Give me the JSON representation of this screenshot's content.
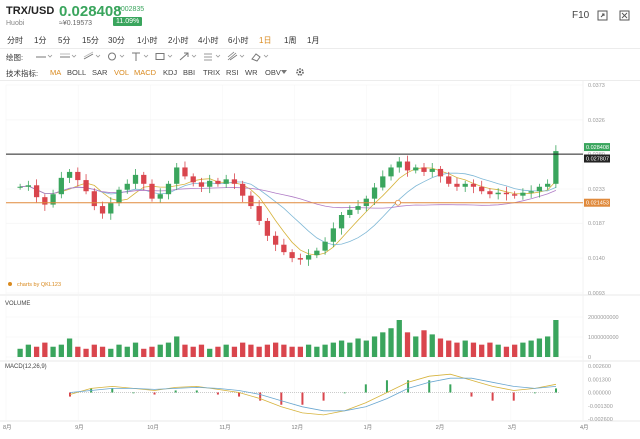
{
  "header": {
    "pair": "TRX/USD",
    "exchange": "Huobi",
    "price": "0.028408",
    "cny_price": "≈¥0.19573",
    "change": "0.002835",
    "change_pct": "11.09%",
    "f10": "F10"
  },
  "periods": [
    {
      "label": "分时",
      "active": false
    },
    {
      "label": "1分",
      "active": false
    },
    {
      "label": "5分",
      "active": false
    },
    {
      "label": "15分",
      "active": false
    },
    {
      "label": "30分",
      "active": false
    },
    {
      "label": "1小时",
      "active": false
    },
    {
      "label": "2小时",
      "active": false
    },
    {
      "label": "4小时",
      "active": false
    },
    {
      "label": "6小时",
      "active": false
    },
    {
      "label": "1日",
      "active": true
    },
    {
      "label": "1周",
      "active": false
    },
    {
      "label": "1月",
      "active": false
    }
  ],
  "draw": {
    "label": "绘图:",
    "tools": [
      "line-tool-icon",
      "horizontal-line-icon",
      "channel-icon",
      "circle-icon",
      "text-icon",
      "rect-icon",
      "arrow-icon",
      "fib-icon",
      "pitchfork-icon",
      "eraser-icon"
    ]
  },
  "indicators": {
    "label": "技术指标:",
    "items": [
      {
        "label": "MA",
        "active": true
      },
      {
        "label": "BOLL",
        "active": false
      },
      {
        "label": "SAR",
        "active": false
      },
      {
        "label": "VOL",
        "active": true
      },
      {
        "label": "MACD",
        "active": true
      },
      {
        "label": "KDJ",
        "active": false
      },
      {
        "label": "BBI",
        "active": false
      },
      {
        "label": "TRIX",
        "active": false
      },
      {
        "label": "RSI",
        "active": false
      },
      {
        "label": "WR",
        "active": false
      },
      {
        "label": "OBV",
        "active": false
      }
    ]
  },
  "watermark": "charts by QKL123",
  "colors": {
    "up": "#3aa55d",
    "down": "#d9454d",
    "accent": "#d98a1f",
    "hline_orange": "#e08a3c",
    "hline_black": "#222222"
  },
  "chart_data": [
    {
      "type": "candlestick",
      "title": "",
      "y_ticks": [
        "0.0373",
        "0.0326",
        "0.0280",
        "0.0233",
        "0.0187",
        "0.0140",
        "0.0093"
      ],
      "ylim": [
        0.0093,
        0.0373
      ],
      "x_labels": [
        "8月",
        "9月",
        "10月",
        "11月",
        "12月",
        "1月",
        "2月",
        "3月",
        "4月"
      ],
      "markers": [
        {
          "label": "0.028408",
          "value": 0.028408,
          "color": "#3aa55d"
        },
        {
          "label": "0.027807",
          "value": 0.027807,
          "color": "#222222"
        },
        {
          "label": "0.021453",
          "value": 0.021453,
          "color": "#e08a3c"
        }
      ],
      "horizontal_lines": [
        {
          "value": 0.028,
          "color": "#222222"
        },
        {
          "value": 0.021453,
          "color": "#e08a3c"
        }
      ],
      "close_series": [
        0.0236,
        0.0238,
        0.0222,
        0.0212,
        0.0226,
        0.0248,
        0.0256,
        0.0245,
        0.023,
        0.021,
        0.02,
        0.0214,
        0.0232,
        0.024,
        0.0252,
        0.024,
        0.022,
        0.0226,
        0.024,
        0.0262,
        0.025,
        0.0242,
        0.0236,
        0.0244,
        0.024,
        0.0246,
        0.024,
        0.0224,
        0.021,
        0.019,
        0.017,
        0.0158,
        0.0148,
        0.014,
        0.0138,
        0.0144,
        0.015,
        0.0162,
        0.018,
        0.0198,
        0.0205,
        0.021,
        0.022,
        0.0235,
        0.025,
        0.0262,
        0.027,
        0.0258,
        0.0262,
        0.0256,
        0.026,
        0.025,
        0.024,
        0.0236,
        0.024,
        0.0236,
        0.023,
        0.0226,
        0.0228,
        0.0226,
        0.0224,
        0.0228,
        0.023,
        0.0236,
        0.024,
        0.0284
      ]
    },
    {
      "type": "bar",
      "title": "VOLUME",
      "y_ticks": [
        "2000000000",
        "1000000000",
        "0"
      ],
      "ylim": [
        0,
        2300000000
      ],
      "values": [
        4,
        6,
        5,
        7,
        5,
        6,
        9,
        5,
        4,
        6,
        5,
        4,
        6,
        5,
        7,
        4,
        5,
        6,
        7,
        10,
        6,
        5,
        6,
        4,
        5,
        6,
        5,
        7,
        6,
        5,
        6,
        7,
        6,
        5,
        5,
        6,
        5,
        6,
        7,
        8,
        7,
        9,
        8,
        10,
        12,
        14,
        18,
        12,
        10,
        13,
        11,
        9,
        8,
        7,
        8,
        7,
        6,
        7,
        6,
        5,
        6,
        7,
        8,
        9,
        10,
        18
      ]
    },
    {
      "type": "line",
      "title": "MACD(12,26,9)",
      "y_ticks": [
        "0.002600",
        "0.001300",
        "0.000000",
        "-0.001300",
        "-0.002600"
      ],
      "ylim": [
        -0.0026,
        0.0026
      ],
      "series": [
        {
          "name": "DIF",
          "values": [
            -0.0002,
            0.0004,
            0.0006,
            0.0004,
            0.0002,
            0.0005,
            0.0006,
            0.0003,
            0.0,
            -0.0006,
            -0.0014,
            -0.002,
            -0.0022,
            -0.0018,
            -0.001,
            0.0,
            0.001,
            0.0016,
            0.0018,
            0.0012,
            0.0006,
            0.0002,
            0.0004,
            0.0008
          ]
        },
        {
          "name": "DEA",
          "values": [
            0.0,
            0.0002,
            0.0004,
            0.0004,
            0.0003,
            0.0004,
            0.0005,
            0.0004,
            0.0002,
            -0.0002,
            -0.0008,
            -0.0014,
            -0.0018,
            -0.0018,
            -0.0014,
            -0.0006,
            0.0004,
            0.001,
            0.0014,
            0.0014,
            0.001,
            0.0006,
            0.0004,
            0.0006
          ]
        }
      ]
    }
  ]
}
